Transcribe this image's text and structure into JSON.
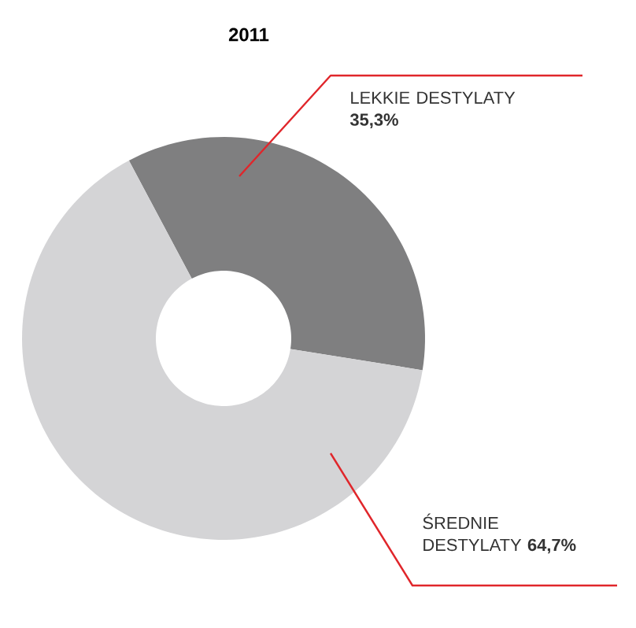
{
  "chart_data": {
    "type": "donut",
    "title": "2011",
    "categories": [
      "LEKKIE DESTYLATY",
      "ŚREDNIE DESTYLATY"
    ],
    "values": [
      35.3,
      64.7
    ],
    "colors": [
      "#7f7f80",
      "#d4d4d6"
    ],
    "value_labels": [
      "35,3%",
      "64,7%"
    ]
  }
}
